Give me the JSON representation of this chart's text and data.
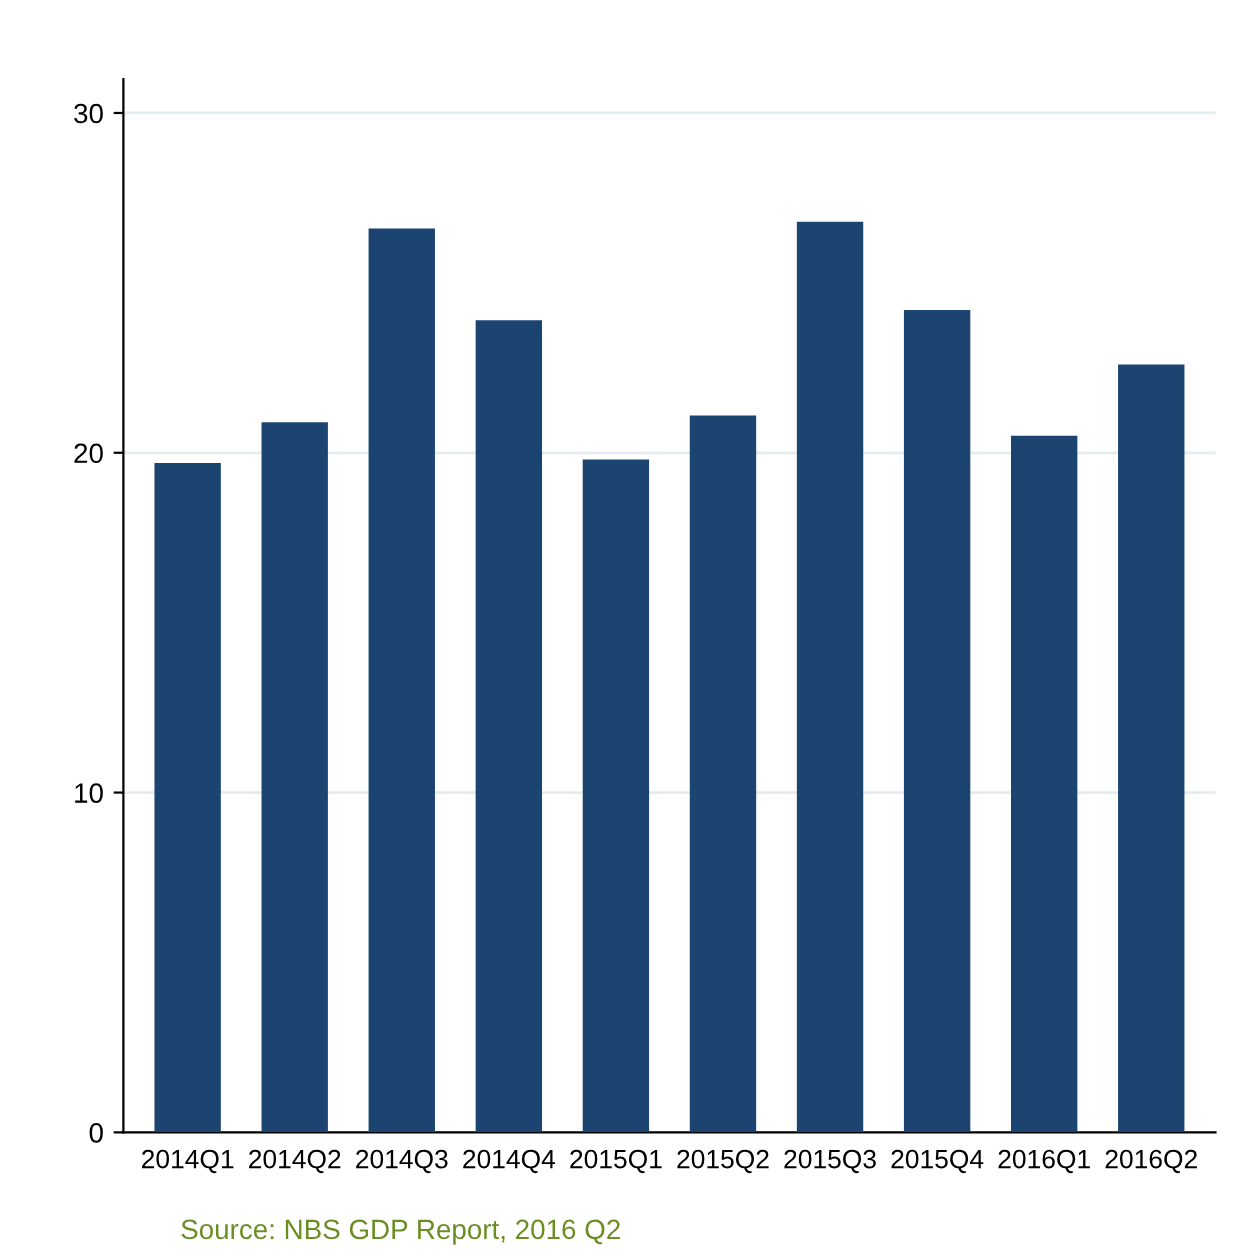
{
  "chart_data": {
    "type": "bar",
    "categories": [
      "2014Q1",
      "2014Q2",
      "2014Q3",
      "2014Q4",
      "2015Q1",
      "2015Q2",
      "2015Q3",
      "2015Q4",
      "2016Q1",
      "2016Q2"
    ],
    "values": [
      19.7,
      20.9,
      26.6,
      23.9,
      19.8,
      21.1,
      26.8,
      24.2,
      20.5,
      22.6
    ],
    "color": "#1b4570",
    "ylim": [
      0,
      31
    ],
    "yticks": [
      0,
      10,
      20,
      30
    ],
    "grid": "y",
    "annotations": [
      "Source: NBS GDP Report, 2016 Q2"
    ]
  }
}
